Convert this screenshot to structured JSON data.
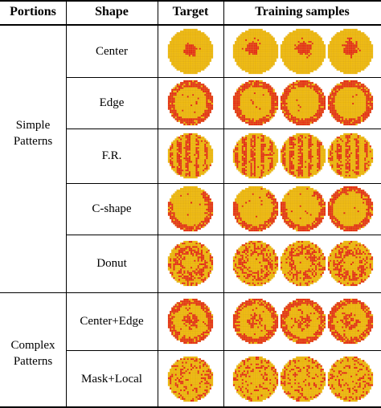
{
  "headers": {
    "portions": "Portions",
    "shape": "Shape",
    "target": "Target",
    "training": "Training samples"
  },
  "portions": [
    {
      "label": "Simple\nPatterns"
    },
    {
      "label": "Complex\nPatterns"
    }
  ],
  "colors": {
    "background_die": "#f2bf12",
    "defect_die": "#e8231a",
    "grid_line": "#d19a10"
  },
  "rows": [
    {
      "shape": "Center",
      "pattern": "center"
    },
    {
      "shape": "Edge",
      "pattern": "edge"
    },
    {
      "shape": "F.R.",
      "pattern": "fr"
    },
    {
      "shape": "C-shape",
      "pattern": "cshape"
    },
    {
      "shape": "Donut",
      "pattern": "donut"
    },
    {
      "shape": "Center+Edge",
      "pattern": "centeredge"
    },
    {
      "shape": "Mask+Local",
      "pattern": "masklocal"
    }
  ]
}
